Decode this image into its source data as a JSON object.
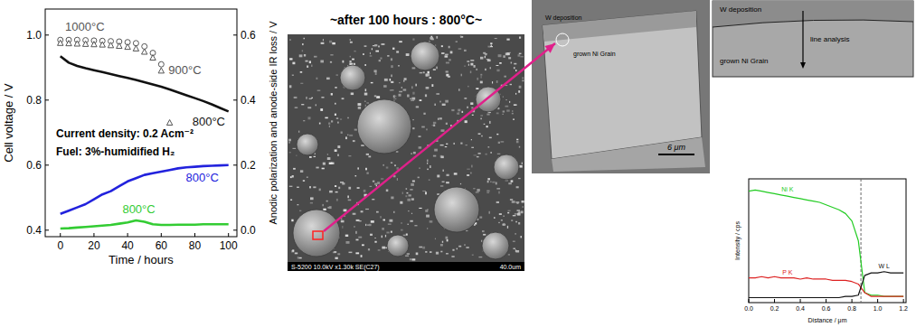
{
  "chart_data": [
    {
      "type": "line",
      "x_label": "Time / hours",
      "y_label": "Cell voltage / V",
      "y2_label": "Anodic polarization and anode-side IR loss / V",
      "annotations": [
        "Current density: 0.2 Acm⁻²",
        "Fuel: 3%-humidified H₂"
      ],
      "x": [
        0,
        5,
        10,
        15,
        20,
        25,
        30,
        35,
        40,
        45,
        50,
        55,
        60,
        65,
        70,
        75,
        80,
        85,
        90,
        95,
        100
      ],
      "xlim": [
        -9,
        105
      ],
      "xticks": [
        0,
        20,
        40,
        60,
        80,
        100
      ],
      "ylim": [
        0.38,
        1.08
      ],
      "yticks": [
        0.4,
        0.6,
        0.8,
        {
          "value": 1,
          "label": "1.0"
        }
      ],
      "y2lim": [
        -0.02,
        0.68
      ],
      "y2ticks": [
        {
          "value": 0,
          "label": "0.0"
        },
        0.2,
        0.4,
        0.6
      ],
      "grid": false,
      "series": [
        {
          "name": "1000°C",
          "color": "#555555",
          "marker": "circle_open",
          "line_style": "none",
          "values": [
            0.985,
            0.985,
            0.985,
            0.984,
            0.983,
            0.982,
            0.981,
            0.98,
            0.978,
            0.975,
            0.965,
            0.945,
            0.91,
            null,
            null,
            null,
            null,
            null,
            null,
            null,
            null
          ]
        },
        {
          "name": "900°C",
          "color": "#555555",
          "marker": "triangle_open",
          "line_style": "none",
          "values": [
            0.975,
            0.974,
            0.973,
            0.972,
            0.971,
            0.97,
            0.968,
            0.966,
            0.963,
            0.958,
            0.948,
            0.93,
            0.89,
            0.73,
            null,
            null,
            null,
            null,
            null,
            null,
            null
          ]
        },
        {
          "name": "800°C",
          "color": "#111111",
          "marker": "none",
          "line_style": "solid",
          "values": [
            0.935,
            0.915,
            0.905,
            0.898,
            0.892,
            0.886,
            0.88,
            0.874,
            0.868,
            0.862,
            0.855,
            0.848,
            0.841,
            0.833,
            0.824,
            0.815,
            0.806,
            0.797,
            0.787,
            0.776,
            0.765
          ]
        },
        {
          "name": "800°C",
          "color": "#2222dd",
          "marker": "none",
          "line_style": "solid",
          "axis": "y2",
          "values": [
            0.05,
            0.06,
            0.07,
            0.08,
            0.095,
            0.11,
            0.12,
            0.135,
            0.15,
            0.16,
            0.17,
            0.175,
            0.18,
            0.185,
            0.19,
            0.193,
            0.195,
            0.197,
            0.198,
            0.199,
            0.2
          ]
        },
        {
          "name": "800°C",
          "color": "#33cc33",
          "marker": "none",
          "line_style": "solid",
          "axis": "y2",
          "values": [
            0.005,
            0.006,
            0.008,
            0.01,
            0.012,
            0.014,
            0.016,
            0.02,
            0.024,
            0.03,
            0.026,
            0.018,
            0.016,
            0.016,
            0.017,
            0.017,
            0.017,
            0.018,
            0.018,
            0.018,
            0.018
          ]
        }
      ]
    },
    {
      "type": "line",
      "x_label": "Distance / μm",
      "y_label": "Intensity / cps",
      "x": [
        0,
        0.05,
        0.1,
        0.15,
        0.2,
        0.25,
        0.3,
        0.35,
        0.4,
        0.45,
        0.5,
        0.55,
        0.6,
        0.65,
        0.7,
        0.75,
        0.8,
        0.85,
        0.9,
        0.95,
        1.0,
        1.05,
        1.1,
        1.15,
        1.2
      ],
      "xlim": [
        0,
        1.22
      ],
      "xticks": [
        {
          "value": 0,
          "label": "0.0"
        },
        0.2,
        0.4,
        0.6,
        0.8,
        {
          "value": 1,
          "label": "1.0"
        },
        1.2
      ],
      "ylim": [
        0,
        100
      ],
      "tick_labels": "x",
      "grid": false,
      "vline": 0.87,
      "series": [
        {
          "name": "Ni K",
          "color": "#22cc22",
          "marker": "none",
          "line_style": "solid",
          "values": [
            90,
            91,
            90,
            89,
            88,
            87,
            86,
            85,
            84,
            83,
            82,
            81,
            79,
            77,
            75,
            72,
            66,
            50,
            8,
            6,
            6,
            5,
            5,
            5,
            5
          ]
        },
        {
          "name": "P K",
          "color": "#dd2222",
          "marker": "none",
          "line_style": "solid",
          "values": [
            20,
            20,
            21,
            20,
            21,
            20,
            20,
            20,
            19,
            20,
            19,
            19,
            19,
            18,
            18,
            18,
            17,
            15,
            8,
            5,
            5,
            5,
            5,
            5,
            5
          ]
        },
        {
          "name": "W L",
          "color": "#111111",
          "marker": "none",
          "line_style": "solid",
          "values": [
            4,
            4,
            4,
            4,
            4,
            4,
            4,
            4,
            4,
            4,
            4,
            4,
            4,
            4,
            4,
            5,
            5,
            6,
            22,
            24,
            24,
            25,
            24,
            24,
            24
          ]
        }
      ]
    }
  ],
  "sem_image": {
    "title": "~after 100 hours : 800°C~",
    "caption": "S-5200 10.0kV x1.30k SE(C27)",
    "scale": "40.0um"
  },
  "fib_image": {
    "labels": [
      "W deposition",
      "grown Ni Grain"
    ],
    "scale": "6 μm"
  },
  "line_analysis_inset": {
    "labels": [
      "W deposition",
      "line analysis",
      "grown Ni Grain"
    ]
  }
}
